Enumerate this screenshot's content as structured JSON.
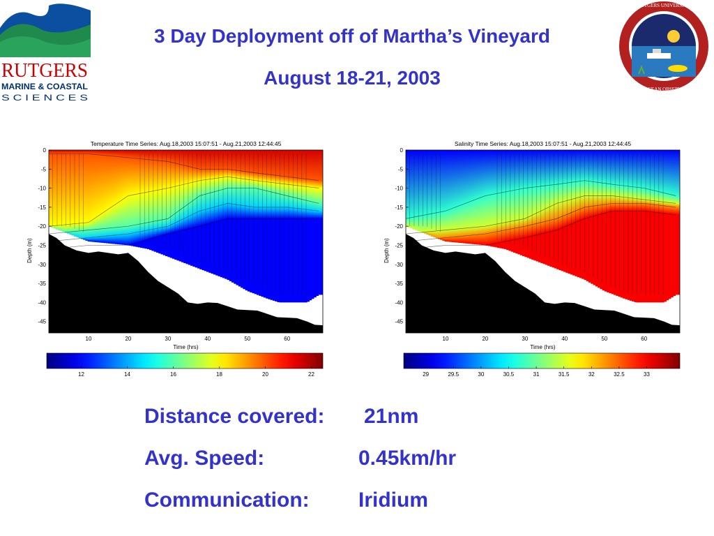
{
  "header": {
    "title": "3 Day Deployment off of Martha’s Vineyard",
    "subtitle": "August 18-21, 2003"
  },
  "logos": {
    "left": {
      "line1": "RUTGERS",
      "line2": "MARINE & COASTAL",
      "line3": "S C I E N C E S"
    },
    "right": {
      "ring_text": "RUTGERS UNIVERSITY COASTAL OCEAN OBSERVATION LAB"
    }
  },
  "stats": [
    {
      "label": "Distance covered:",
      "value": "21nm"
    },
    {
      "label": "Avg. Speed:",
      "value": "0.45km/hr"
    },
    {
      "label": "Communication:",
      "value": "Iridium"
    }
  ],
  "chart_data": [
    {
      "type": "heatmap",
      "title": "Temperature Time Series: Aug.18,2003 15:07:51 - Aug.21,2003 12:44:45",
      "xlabel": "Time (hrs)",
      "ylabel": "Depth (m)",
      "xlim": [
        0,
        69
      ],
      "ylim": [
        -48,
        0
      ],
      "xticks": [
        10,
        20,
        30,
        40,
        50,
        60
      ],
      "yticks": [
        0,
        -5,
        -10,
        -15,
        -20,
        -25,
        -30,
        -35,
        -40,
        -45
      ],
      "colorbar": {
        "ticks": [
          12,
          14,
          16,
          18,
          20,
          22
        ],
        "range": [
          10.5,
          22.5
        ]
      },
      "layers": [
        {
          "x": [
            0,
            10,
            20,
            30,
            38,
            45,
            52,
            60,
            68
          ],
          "y": [
            0,
            0,
            0,
            0,
            0,
            0,
            0,
            0,
            0
          ],
          "value": 21.5
        },
        {
          "x": [
            0,
            10,
            20,
            30,
            38,
            45,
            52,
            60,
            68
          ],
          "y": [
            -1,
            -1,
            -2,
            -3,
            -5,
            -5,
            -6,
            -7,
            -8
          ],
          "value": 20
        },
        {
          "x": [
            0,
            10,
            20,
            30,
            38,
            45,
            52,
            60,
            68
          ],
          "y": [
            -20,
            -19,
            -12,
            -10,
            -8,
            -7,
            -8,
            -9,
            -10
          ],
          "value": 18
        },
        {
          "x": [
            0,
            10,
            20,
            30,
            38,
            45,
            52,
            60,
            68
          ],
          "y": [
            -22,
            -21,
            -20,
            -18,
            -12,
            -10,
            -10,
            -12,
            -14
          ],
          "value": 16
        },
        {
          "x": [
            0,
            10,
            20,
            30,
            38,
            45,
            52,
            60,
            68
          ],
          "y": [
            -24,
            -23,
            -22,
            -20,
            -16,
            -14,
            -15,
            -15,
            -16
          ],
          "value": 14.5
        },
        {
          "x": [
            0,
            10,
            20,
            30,
            38,
            45,
            52,
            60,
            68
          ],
          "y": [
            -26,
            -25,
            -25,
            -22,
            -20,
            -18,
            -18,
            -18,
            -18
          ],
          "value": 12
        }
      ],
      "data_bottom": {
        "x": [
          0,
          10,
          20,
          25,
          30,
          35,
          40,
          45,
          50,
          55,
          58,
          62,
          65,
          68
        ],
        "y": [
          -20,
          -24,
          -25,
          -26,
          -28,
          -30,
          -32,
          -34,
          -37,
          -39,
          -40,
          -40,
          -40,
          -38
        ]
      },
      "seafloor": {
        "x": [
          0,
          4,
          10,
          15,
          20,
          25,
          30,
          35,
          40,
          45,
          50,
          55,
          60,
          65,
          69
        ],
        "y": [
          -22,
          -25,
          -27,
          -27,
          -27,
          -32,
          -36,
          -40,
          -40,
          -41,
          -42,
          -43,
          -44,
          -45,
          -46
        ]
      }
    },
    {
      "type": "heatmap",
      "title": "Salinity Time Series: Aug.18,2003 15:07:51 - Aug.21,2003 12:44:45",
      "xlabel": "Time (hrs)",
      "ylabel": "Depth (m)",
      "xlim": [
        0,
        69
      ],
      "ylim": [
        -48,
        0
      ],
      "xticks": [
        10,
        20,
        30,
        40,
        50,
        60
      ],
      "yticks": [
        0,
        -5,
        -10,
        -15,
        -20,
        -25,
        -30,
        -35,
        -40,
        -45
      ],
      "colorbar": {
        "ticks": [
          29,
          29.5,
          30,
          30.5,
          31,
          31.5,
          32,
          32.5,
          33
        ],
        "range": [
          28.6,
          33.6
        ]
      },
      "layers": [
        {
          "x": [
            0,
            10,
            20,
            30,
            38,
            45,
            52,
            60,
            68
          ],
          "y": [
            0,
            0,
            0,
            0,
            0,
            0,
            0,
            0,
            0
          ],
          "value": 29.2
        },
        {
          "x": [
            0,
            10,
            20,
            30,
            38,
            45,
            52,
            60,
            68
          ],
          "y": [
            -18,
            -16,
            -12,
            -10,
            -9,
            -8,
            -9,
            -10,
            -12
          ],
          "value": 30.7
        },
        {
          "x": [
            0,
            10,
            20,
            30,
            38,
            45,
            52,
            60,
            68
          ],
          "y": [
            -22,
            -21,
            -20,
            -18,
            -14,
            -12,
            -12,
            -13,
            -14
          ],
          "value": 31.5
        },
        {
          "x": [
            0,
            10,
            20,
            30,
            38,
            45,
            52,
            60,
            68
          ],
          "y": [
            -24,
            -23,
            -22,
            -20,
            -18,
            -15,
            -14,
            -14,
            -15
          ],
          "value": 32.3
        },
        {
          "x": [
            0,
            10,
            20,
            30,
            38,
            45,
            52,
            60,
            68
          ],
          "y": [
            -26,
            -25,
            -25,
            -23,
            -21,
            -18,
            -16,
            -16,
            -17
          ],
          "value": 33
        }
      ],
      "data_bottom": {
        "x": [
          0,
          10,
          20,
          25,
          30,
          35,
          40,
          45,
          50,
          55,
          58,
          62,
          65,
          68
        ],
        "y": [
          -20,
          -24,
          -25,
          -26,
          -28,
          -30,
          -32,
          -34,
          -37,
          -39,
          -40,
          -40,
          -40,
          -38
        ]
      },
      "seafloor": {
        "x": [
          0,
          4,
          10,
          15,
          20,
          25,
          30,
          35,
          40,
          45,
          50,
          55,
          60,
          65,
          69
        ],
        "y": [
          -22,
          -25,
          -27,
          -27,
          -27,
          -32,
          -36,
          -40,
          -40,
          -41,
          -42,
          -43,
          -44,
          -45,
          -46
        ]
      }
    }
  ]
}
